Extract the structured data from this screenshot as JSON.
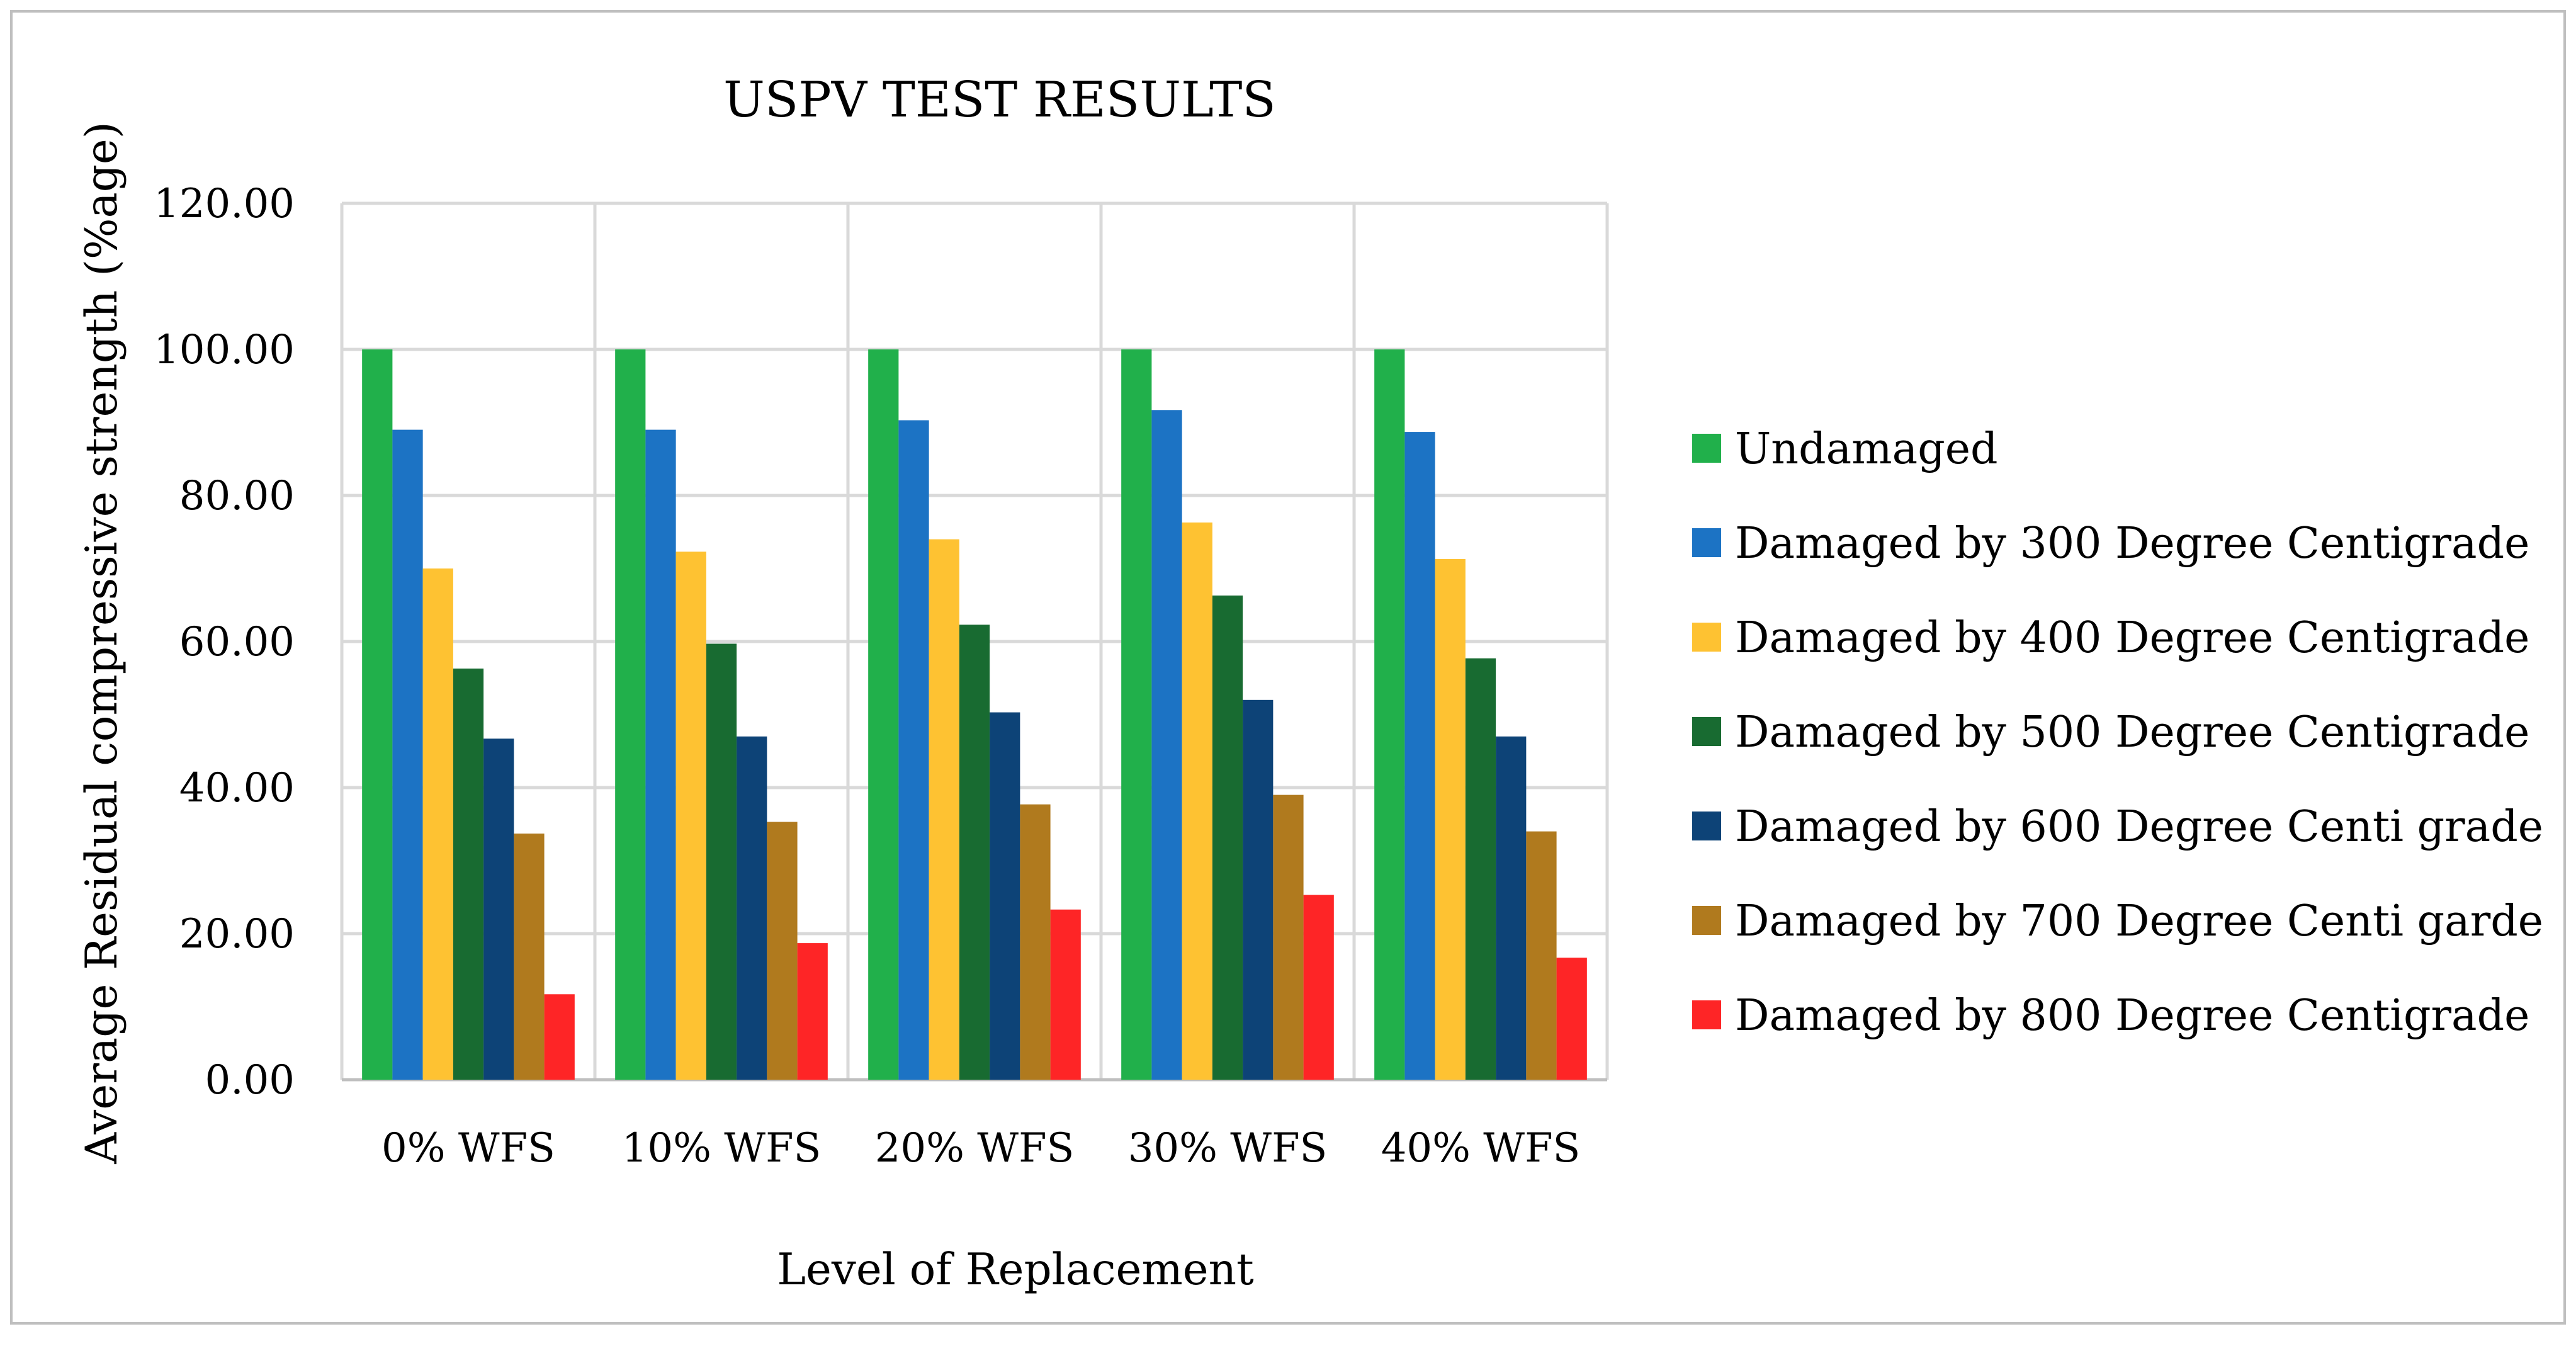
{
  "chart_data": {
    "type": "bar",
    "title": "USPV TEST RESULTS",
    "xlabel": "Level of Replacement",
    "ylabel": "Average Residual compressive strength (%age)",
    "ylim": [
      0,
      120
    ],
    "yticks": [
      "0.00",
      "20.00",
      "40.00",
      "60.00",
      "80.00",
      "100.00",
      "120.00"
    ],
    "grid": true,
    "legend_position": "right",
    "categories": [
      "0% WFS",
      "10% WFS",
      "20% WFS",
      "30% WFS",
      "40% WFS"
    ],
    "series": [
      {
        "name": "Undamaged",
        "color": "#21b04b",
        "values": [
          100.0,
          100.0,
          100.0,
          100.0,
          100.0
        ]
      },
      {
        "name": "Damaged by 300 Degree Centigrade",
        "color": "#1c73c4",
        "values": [
          89.0,
          89.0,
          90.3,
          91.7,
          88.7
        ]
      },
      {
        "name": "Damaged by 400 Degree Centigrade",
        "color": "#fec232",
        "values": [
          70.0,
          72.3,
          74.0,
          76.3,
          71.3
        ]
      },
      {
        "name": "Damaged by 500 Degree Centigrade",
        "color": "#186b31",
        "values": [
          56.3,
          59.7,
          62.3,
          66.3,
          57.7
        ]
      },
      {
        "name": "Damaged by 600 Degree Centi grade",
        "color": "#0d4377",
        "values": [
          46.7,
          47.0,
          50.3,
          52.0,
          47.0
        ]
      },
      {
        "name": "Damaged by 700 Degree Centi garde",
        "color": "#b07a1e",
        "values": [
          33.7,
          35.3,
          37.7,
          39.0,
          34.0
        ]
      },
      {
        "name": "Damaged by 800 Degree Centigrade",
        "color": "#fe2526",
        "values": [
          11.7,
          18.7,
          23.3,
          25.3,
          16.7
        ]
      }
    ]
  }
}
